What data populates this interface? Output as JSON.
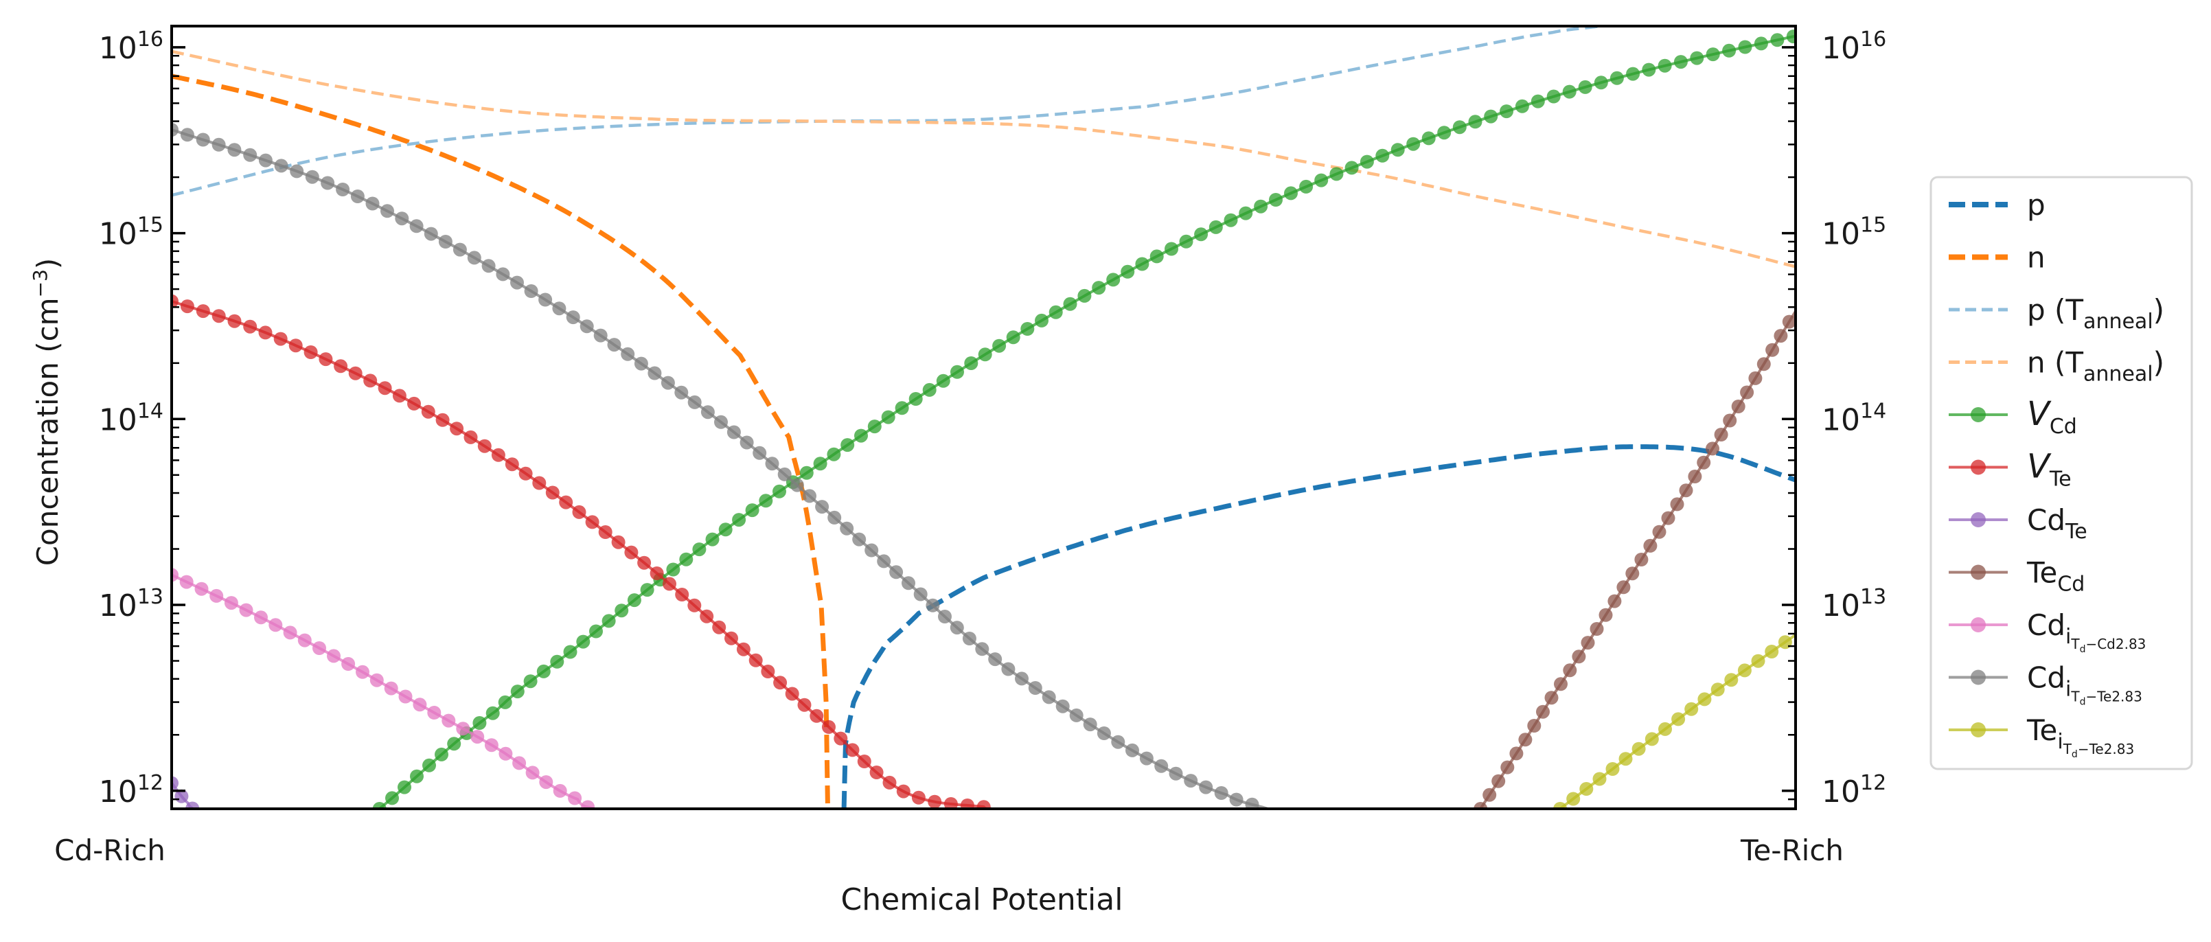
{
  "chart_data": {
    "type": "line",
    "xlabel": "Chemical Potential",
    "ylabel_main": "Concentration (cm",
    "ylabel_sup": "−3",
    "ylabel_close": ")",
    "x_ticks": [
      {
        "x": 0,
        "label": "Cd-Rich"
      },
      {
        "x": 1,
        "label": "Te-Rich"
      }
    ],
    "y_scale": "log",
    "xlim": [
      0,
      1
    ],
    "ylim": [
      800000000000.0,
      1.3e+16
    ],
    "y_ticks": [
      {
        "value": 1000000000000.0,
        "base": "10",
        "exp": "12"
      },
      {
        "value": 10000000000000.0,
        "base": "10",
        "exp": "13"
      },
      {
        "value": 100000000000000.0,
        "base": "10",
        "exp": "14"
      },
      {
        "value": 1000000000000000.0,
        "base": "10",
        "exp": "15"
      },
      {
        "value": 1e+16,
        "base": "10",
        "exp": "16"
      }
    ],
    "legend_position": "right, outside plot",
    "series": [
      {
        "id": "p",
        "name": "p",
        "sub": "",
        "color": "#1f77b4",
        "style": "dash-thick",
        "marker": false,
        "x": [
          0.414,
          0.415,
          0.42,
          0.43,
          0.44,
          0.46,
          0.5,
          0.55,
          0.6,
          0.65,
          0.7,
          0.75,
          0.8,
          0.85,
          0.9,
          0.95,
          1.0
        ],
        "y": [
          800000000000.0,
          1800000000000.0,
          3000000000000.0,
          4500000000000.0,
          6200000000000.0,
          9000000000000.0,
          14000000000000.0,
          20000000000000.0,
          27000000000000.0,
          34000000000000.0,
          42000000000000.0,
          50000000000000.0,
          58000000000000.0,
          66000000000000.0,
          71000000000000.0,
          66000000000000.0,
          47000000000000.0
        ]
      },
      {
        "id": "n",
        "name": "n",
        "sub": "",
        "color": "#ff7f0e",
        "style": "dash-thick",
        "marker": false,
        "x": [
          0.0,
          0.05,
          0.1,
          0.15,
          0.2,
          0.25,
          0.3,
          0.35,
          0.38,
          0.39,
          0.4,
          0.403,
          0.404
        ],
        "y": [
          7000000000000000.0,
          5600000000000000.0,
          4200000000000000.0,
          3000000000000000.0,
          2000000000000000.0,
          1200000000000000.0,
          600000000000000.0,
          220000000000000.0,
          80000000000000.0,
          35000000000000.0,
          10000000000000.0,
          3000000000000.0,
          800000000000.0
        ]
      },
      {
        "id": "p_anneal",
        "name": "p (T",
        "sub": "anneal",
        "close": ")",
        "color": "#90bedc",
        "style": "dash-thin",
        "marker": false,
        "x": [
          0.0,
          0.1,
          0.2,
          0.3,
          0.4,
          0.5,
          0.6,
          0.65,
          0.7,
          0.75,
          0.8,
          0.85,
          0.88
        ],
        "y": [
          1600000000000000.0,
          2600000000000000.0,
          3400000000000000.0,
          3850000000000000.0,
          4000000000000000.0,
          4100000000000000.0,
          4800000000000000.0,
          5600000000000000.0,
          6800000000000000.0,
          8300000000000000.0,
          1e+16,
          1.2e+16,
          1.3e+16
        ]
      },
      {
        "id": "n_anneal",
        "name": "n (T",
        "sub": "anneal",
        "close": ")",
        "color": "#ffbe86",
        "style": "dash-thin",
        "marker": false,
        "x": [
          0.0,
          0.1,
          0.2,
          0.3,
          0.4,
          0.5,
          0.55,
          0.6,
          0.65,
          0.7,
          0.75,
          0.8,
          0.85,
          0.9,
          0.95,
          1.0
        ],
        "y": [
          9500000000000000.0,
          6200000000000000.0,
          4600000000000000.0,
          4100000000000000.0,
          4000000000000000.0,
          3900000000000000.0,
          3700000000000000.0,
          3300000000000000.0,
          2900000000000000.0,
          2400000000000000.0,
          2000000000000000.0,
          1600000000000000.0,
          1300000000000000.0,
          1050000000000000.0,
          850000000000000.0,
          660000000000000.0
        ]
      },
      {
        "id": "vcd",
        "name": "V",
        "italic": true,
        "sub": "Cd",
        "color": "#2ca02c",
        "style": "solid",
        "marker": true,
        "x": [
          0.128,
          0.2,
          0.25,
          0.3,
          0.35,
          0.4,
          0.45,
          0.5,
          0.55,
          0.6,
          0.65,
          0.7,
          0.75,
          0.8,
          0.85,
          0.9,
          0.95,
          1.0
        ],
        "y": [
          800000000000.0,
          2700000000000.0,
          6000000000000.0,
          13500000000000.0,
          29000000000000.0,
          58000000000000.0,
          115000000000000.0,
          220000000000000.0,
          400000000000000.0,
          700000000000000.0,
          1150000000000000.0,
          1800000000000000.0,
          2700000000000000.0,
          3900000000000000.0,
          5400000000000000.0,
          7200000000000000.0,
          9200000000000000.0,
          1.15e+16
        ]
      },
      {
        "id": "vte",
        "name": "V",
        "italic": true,
        "sub": "Te",
        "color": "#d62728",
        "style": "solid",
        "marker": true,
        "x": [
          0.0,
          0.05,
          0.1,
          0.15,
          0.2,
          0.25,
          0.3,
          0.35,
          0.4,
          0.45,
          0.5,
          0.505
        ],
        "y": [
          430000000000000.0,
          310000000000000.0,
          200000000000000.0,
          120000000000000.0,
          65000000000000.0,
          32000000000000.0,
          14500000000000.0,
          6000000000000.0,
          2400000000000.0,
          1000000000000.0,
          820000000000.0,
          800000000000.0
        ]
      },
      {
        "id": "cdte",
        "name": "Cd",
        "sub": "Te",
        "color": "#9467bd",
        "style": "solid",
        "marker": true,
        "x": [
          0.0,
          0.01,
          0.013
        ],
        "y": [
          1100000000000.0,
          860000000000.0,
          800000000000.0
        ]
      },
      {
        "id": "tecd",
        "name": "Te",
        "sub": "Cd",
        "color": "#8c564b",
        "style": "solid",
        "marker": true,
        "x": [
          0.806,
          0.85,
          0.9,
          0.95,
          1.0
        ],
        "y": [
          800000000000.0,
          3200000000000.0,
          15000000000000.0,
          72000000000000.0,
          380000000000000.0
        ]
      },
      {
        "id": "cdi_cd",
        "name": "Cd",
        "sub": "i",
        "sub2": "T",
        "sub3": "d",
        "sub4": "−Cd2.83",
        "color": "#e377c2",
        "style": "solid",
        "marker": true,
        "x": [
          0.0,
          0.05,
          0.1,
          0.15,
          0.2,
          0.25,
          0.26
        ],
        "y": [
          14500000000000.0,
          9000000000000.0,
          5300000000000.0,
          3000000000000.0,
          1700000000000.0,
          900000000000.0,
          800000000000.0
        ]
      },
      {
        "id": "cdi_te",
        "name": "Cd",
        "sub": "i",
        "sub2": "T",
        "sub3": "d",
        "sub4": "−Te2.83",
        "color": "#7f7f7f",
        "style": "solid",
        "marker": true,
        "x": [
          0.0,
          0.05,
          0.1,
          0.15,
          0.2,
          0.25,
          0.3,
          0.35,
          0.4,
          0.45,
          0.5,
          0.55,
          0.6,
          0.65,
          0.675
        ],
        "y": [
          3600000000000000.0,
          2600000000000000.0,
          1800000000000000.0,
          1100000000000000.0,
          630000000000000.0,
          340000000000000.0,
          170000000000000.0,
          80000000000000.0,
          34000000000000.0,
          14000000000000.0,
          5700000000000.0,
          2800000000000.0,
          1500000000000.0,
          950000000000.0,
          800000000000.0
        ]
      },
      {
        "id": "tei_te",
        "name": "Te",
        "sub": "i",
        "sub2": "T",
        "sub3": "d",
        "sub4": "−Te2.83",
        "color": "#bcbd22",
        "style": "solid",
        "marker": true,
        "x": [
          0.855,
          0.9,
          0.95,
          1.0
        ],
        "y": [
          800000000000.0,
          1600000000000.0,
          3400000000000.0,
          6900000000000.0
        ]
      }
    ]
  }
}
